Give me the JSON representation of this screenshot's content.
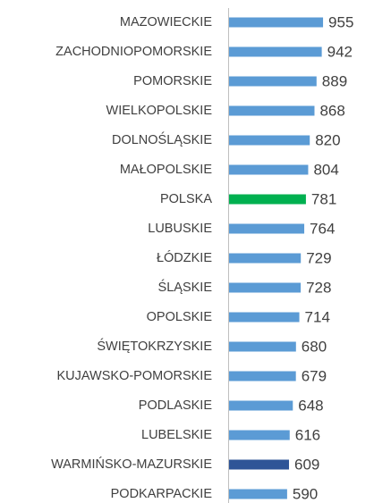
{
  "chart_data": {
    "type": "barh",
    "categories": [
      "MAZOWIECKIE",
      "ZACHODNIOPOMORSKIE",
      "POMORSKIE",
      "WIELKOPOLSKIE",
      "DOLNOŚLĄSKIE",
      "MAŁOPOLSKIE",
      "POLSKA",
      "LUBUSKIE",
      "ŁÓDZKIE",
      "ŚLĄSKIE",
      "OPOLSKIE",
      "ŚWIĘTOKRZYSKIE",
      "KUJAWSKO-POMORSKIE",
      "PODLASKIE",
      "LUBELSKIE",
      "WARMIŃSKO-MAZURSKIE",
      "PODKARPACKIE"
    ],
    "values": [
      955,
      942,
      889,
      868,
      820,
      804,
      781,
      764,
      729,
      728,
      714,
      680,
      679,
      648,
      616,
      609,
      590
    ],
    "colors": [
      "#5b9bd5",
      "#5b9bd5",
      "#5b9bd5",
      "#5b9bd5",
      "#5b9bd5",
      "#5b9bd5",
      "#00b050",
      "#5b9bd5",
      "#5b9bd5",
      "#5b9bd5",
      "#5b9bd5",
      "#5b9bd5",
      "#5b9bd5",
      "#5b9bd5",
      "#5b9bd5",
      "#2f5597",
      "#5b9bd5"
    ],
    "xlim": [
      0,
      1000
    ]
  }
}
